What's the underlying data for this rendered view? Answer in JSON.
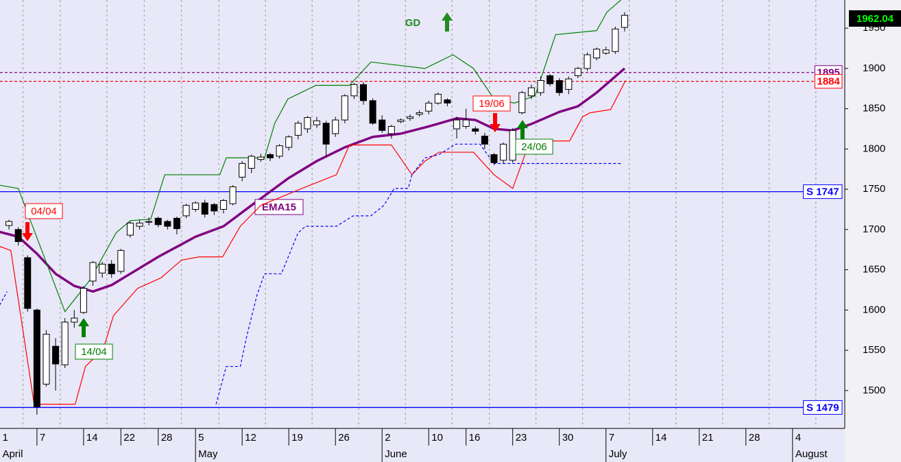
{
  "chart_data": {
    "type": "candlestick",
    "xlim": [
      -0.96,
      89.6
    ],
    "ylim": [
      1453,
      1985
    ],
    "yticks": [
      1500,
      1550,
      1600,
      1650,
      1700,
      1750,
      1800,
      1850,
      1900,
      1950
    ],
    "xticks": [
      {
        "value": -1,
        "label": "1"
      },
      {
        "value": 3,
        "label": "7"
      },
      {
        "value": 8,
        "label": "14"
      },
      {
        "value": 12,
        "label": "22"
      },
      {
        "value": 16,
        "label": "28"
      },
      {
        "value": 20,
        "label": "5"
      },
      {
        "value": 25,
        "label": "12"
      },
      {
        "value": 30,
        "label": "19"
      },
      {
        "value": 35,
        "label": "26"
      },
      {
        "value": 40,
        "label": "2"
      },
      {
        "value": 45,
        "label": "10"
      },
      {
        "value": 49,
        "label": "16"
      },
      {
        "value": 54,
        "label": "23"
      },
      {
        "value": 59,
        "label": "30"
      },
      {
        "value": 64,
        "label": "7"
      },
      {
        "value": 69,
        "label": "14"
      },
      {
        "value": 74,
        "label": "21"
      },
      {
        "value": 79,
        "label": "28"
      },
      {
        "value": 84,
        "label": "4"
      }
    ],
    "months": [
      {
        "value": -1,
        "label": "April"
      },
      {
        "value": 20,
        "label": "May"
      },
      {
        "value": 40,
        "label": "June"
      },
      {
        "value": 64,
        "label": "July"
      },
      {
        "value": 84,
        "label": "August"
      }
    ],
    "grid": true,
    "x": [
      0,
      1,
      2,
      3,
      4,
      5,
      6,
      7,
      8,
      9,
      10,
      11,
      12,
      13,
      14,
      15,
      16,
      17,
      18,
      19,
      20,
      21,
      22,
      23,
      24,
      25,
      26,
      27,
      28,
      29,
      30,
      31,
      32,
      33,
      34,
      35,
      36,
      37,
      38,
      39,
      40,
      41,
      42,
      43,
      44,
      45,
      46,
      47,
      48,
      49,
      50,
      51,
      52,
      53,
      54,
      55,
      56,
      57,
      58,
      59,
      60,
      61,
      62,
      63,
      64,
      65,
      66
    ],
    "open": [
      1705,
      1700,
      1665,
      1600,
      1508,
      1555,
      1532,
      1585,
      1597,
      1636,
      1646,
      1657,
      1648,
      1693,
      1704,
      1709,
      1714,
      1710,
      1714,
      1717,
      1725,
      1733,
      1731,
      1725,
      1732,
      1765,
      1776,
      1787,
      1793,
      1791,
      1802,
      1817,
      1825,
      1830,
      1832,
      1819,
      1836,
      1866,
      1880,
      1860,
      1836,
      1819,
      1834,
      1838,
      1843,
      1847,
      1857,
      1861,
      1825,
      1828,
      1825,
      1816,
      1793,
      1786,
      1786,
      1845,
      1866,
      1870,
      1891,
      1885,
      1874,
      1891,
      1900,
      1913,
      1919,
      1921,
      1951
    ],
    "high": [
      1712,
      1703,
      1668,
      1602,
      1575,
      1565,
      1590,
      1600,
      1630,
      1661,
      1660,
      1662,
      1676,
      1710,
      1712,
      1715,
      1716,
      1712,
      1716,
      1732,
      1735,
      1737,
      1733,
      1738,
      1755,
      1785,
      1793,
      1794,
      1795,
      1806,
      1817,
      1835,
      1841,
      1840,
      1835,
      1840,
      1868,
      1882,
      1883,
      1863,
      1842,
      1830,
      1838,
      1843,
      1848,
      1860,
      1870,
      1863,
      1840,
      1850,
      1828,
      1820,
      1795,
      1808,
      1826,
      1872,
      1880,
      1890,
      1893,
      1888,
      1890,
      1902,
      1920,
      1926,
      1927,
      1952,
      1970
    ],
    "low": [
      1700,
      1680,
      1598,
      1470,
      1505,
      1500,
      1528,
      1578,
      1595,
      1630,
      1640,
      1640,
      1645,
      1690,
      1700,
      1705,
      1703,
      1700,
      1694,
      1714,
      1722,
      1715,
      1718,
      1720,
      1730,
      1760,
      1770,
      1784,
      1785,
      1788,
      1798,
      1812,
      1820,
      1826,
      1790,
      1815,
      1832,
      1862,
      1855,
      1830,
      1820,
      1813,
      1832,
      1835,
      1840,
      1843,
      1855,
      1853,
      1813,
      1825,
      1818,
      1800,
      1780,
      1782,
      1783,
      1843,
      1862,
      1866,
      1878,
      1866,
      1868,
      1888,
      1897,
      1910,
      1917,
      1918,
      1946
    ],
    "close": [
      1710,
      1685,
      1602,
      1480,
      1570,
      1533,
      1585,
      1590,
      1627,
      1659,
      1657,
      1645,
      1674,
      1708,
      1708,
      1710,
      1706,
      1704,
      1701,
      1730,
      1733,
      1719,
      1723,
      1736,
      1753,
      1782,
      1791,
      1790,
      1789,
      1804,
      1815,
      1832,
      1839,
      1835,
      1806,
      1836,
      1866,
      1880,
      1860,
      1832,
      1823,
      1828,
      1836,
      1840,
      1845,
      1857,
      1868,
      1857,
      1836,
      1836,
      1822,
      1806,
      1783,
      1806,
      1823,
      1870,
      1876,
      1885,
      1881,
      1870,
      1887,
      1900,
      1917,
      1924,
      1923,
      1949,
      1966
    ],
    "up_color": "#ffffff",
    "down_color": "#000000",
    "lines": [
      {
        "name": "EMA15",
        "color": "#800080",
        "width": 3.5,
        "dash": false,
        "x": [
          -1,
          1,
          3,
          5,
          7,
          9,
          11,
          13,
          16,
          20,
          23,
          26,
          30,
          33,
          36,
          39,
          42,
          45,
          48,
          50,
          52,
          54,
          56,
          59,
          61,
          63,
          66
        ],
        "values": [
          1697,
          1691,
          1670,
          1645,
          1630,
          1623,
          1631,
          1645,
          1666,
          1691,
          1704,
          1730,
          1764,
          1785,
          1802,
          1815,
          1819,
          1828,
          1838,
          1836,
          1825,
          1823,
          1831,
          1846,
          1853,
          1870,
          1900
        ]
      },
      {
        "color": "#008000",
        "width": 1.2,
        "dash": false,
        "x": [
          -1,
          1,
          6,
          8.6,
          11.5,
          13,
          15.2,
          16.7,
          22.6,
          23.3,
          27.4,
          28.5,
          29.9,
          32.9,
          36.5,
          38.8,
          44.6,
          47.6,
          49.8,
          52,
          54.2,
          56.4,
          58.6,
          63,
          64.1,
          65.6
        ],
        "values": [
          1755,
          1751,
          1598,
          1636,
          1696,
          1711,
          1713,
          1768,
          1768,
          1789,
          1789,
          1832,
          1862,
          1879,
          1879,
          1908,
          1900,
          1917,
          1900,
          1862,
          1857,
          1866,
          1942,
          1947,
          1970,
          1985
        ]
      },
      {
        "color": "#ff0000",
        "width": 1.2,
        "dash": false,
        "x": [
          -1,
          0.2,
          2.7,
          7.1,
          8.2,
          10.1,
          11.2,
          13.8,
          16.3,
          18.5,
          20.4,
          22.9,
          24.8,
          27,
          31.4,
          35.1,
          36.5,
          41,
          43.2,
          44.6,
          46.1,
          49.8,
          52,
          54,
          55.7,
          57.9,
          60.1,
          61.5,
          62.3,
          64.5,
          66.1
        ],
        "values": [
          1679,
          1674,
          1483,
          1483,
          1530,
          1551,
          1593,
          1627,
          1640,
          1662,
          1666,
          1666,
          1704,
          1730,
          1751,
          1768,
          1805,
          1805,
          1768,
          1785,
          1796,
          1796,
          1768,
          1751,
          1805,
          1810,
          1810,
          1840,
          1845,
          1849,
          1885
        ]
      },
      {
        "color": "#0000ff",
        "width": 1.2,
        "dash": true,
        "x": [
          -1,
          -0.2,
          10,
          22.2,
          23.3,
          24.8,
          25.5,
          26.6,
          27.4,
          29.2,
          31,
          31.8,
          35.1,
          36.9,
          38.8,
          40.2,
          41.3,
          42.8,
          43.2,
          44.6,
          46.1,
          47.9,
          50.5,
          51.3,
          52,
          65.6
        ],
        "values": [
          1606,
          1623,
          null,
          1483,
          1530,
          1530,
          1568,
          1619,
          1645,
          1645,
          1696,
          1704,
          1704,
          1717,
          1717,
          1730,
          1751,
          1751,
          1768,
          1789,
          1793,
          1806,
          1806,
          1793,
          1782,
          1782
        ]
      }
    ],
    "levels": [
      {
        "label": "1895",
        "value": 1895,
        "color": "#800080",
        "dash": true
      },
      {
        "label": "1884",
        "value": 1884,
        "color": "#ff0000",
        "dash": true
      },
      {
        "label": "S 1747",
        "value": 1747,
        "color": "#0000ff",
        "dash": false
      },
      {
        "label": "S 1479",
        "value": 1479,
        "color": "#0000ff",
        "dash": false
      }
    ],
    "last_price": 1962.04,
    "signal_title": "GD",
    "annotations": [
      {
        "text": "04/04",
        "color": "#ff0000"
      },
      {
        "text": "14/04",
        "color": "#008000"
      },
      {
        "text": "19/06",
        "color": "#ff0000"
      },
      {
        "text": "24/06",
        "color": "#008000"
      }
    ]
  }
}
